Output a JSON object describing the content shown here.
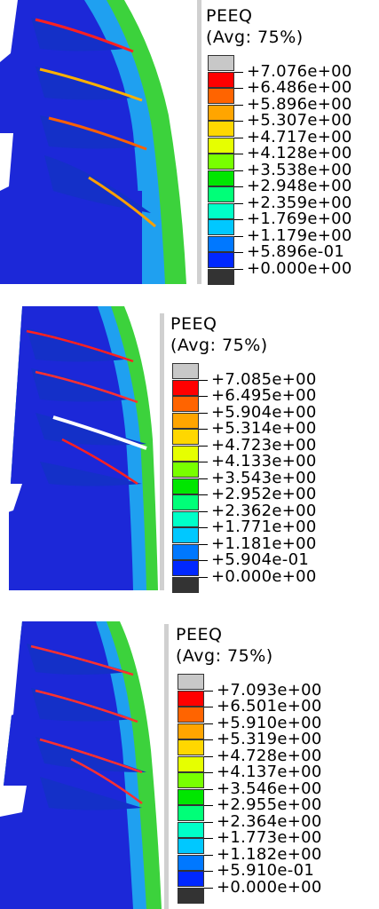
{
  "colors": [
    "#c8c8c8",
    "#ff0000",
    "#ff6400",
    "#ffa500",
    "#ffd700",
    "#e6ff00",
    "#78ff00",
    "#00e600",
    "#00ff78",
    "#00ffc8",
    "#00c8ff",
    "#0078ff",
    "#0028ff",
    "#333333"
  ],
  "panels": [
    {
      "title": "PEEQ",
      "subtitle": "(Avg: 75%)",
      "labels": [
        "+7.076e+00",
        "+6.486e+00",
        "+5.896e+00",
        "+5.307e+00",
        "+4.717e+00",
        "+4.128e+00",
        "+3.538e+00",
        "+2.948e+00",
        "+2.359e+00",
        "+1.769e+00",
        "+1.179e+00",
        "+5.896e-01",
        "+0.000e+00"
      ]
    },
    {
      "title": "PEEQ",
      "subtitle": "(Avg: 75%)",
      "labels": [
        "+7.085e+00",
        "+6.495e+00",
        "+5.904e+00",
        "+5.314e+00",
        "+4.723e+00",
        "+4.133e+00",
        "+3.543e+00",
        "+2.952e+00",
        "+2.362e+00",
        "+1.771e+00",
        "+1.181e+00",
        "+5.904e-01",
        "+0.000e+00"
      ]
    },
    {
      "title": "PEEQ",
      "subtitle": "(Avg: 75%)",
      "labels": [
        "+7.093e+00",
        "+6.501e+00",
        "+5.910e+00",
        "+5.319e+00",
        "+4.728e+00",
        "+4.137e+00",
        "+3.546e+00",
        "+2.955e+00",
        "+2.364e+00",
        "+1.773e+00",
        "+1.182e+00",
        "+5.910e-01",
        "+0.000e+00"
      ]
    }
  ]
}
